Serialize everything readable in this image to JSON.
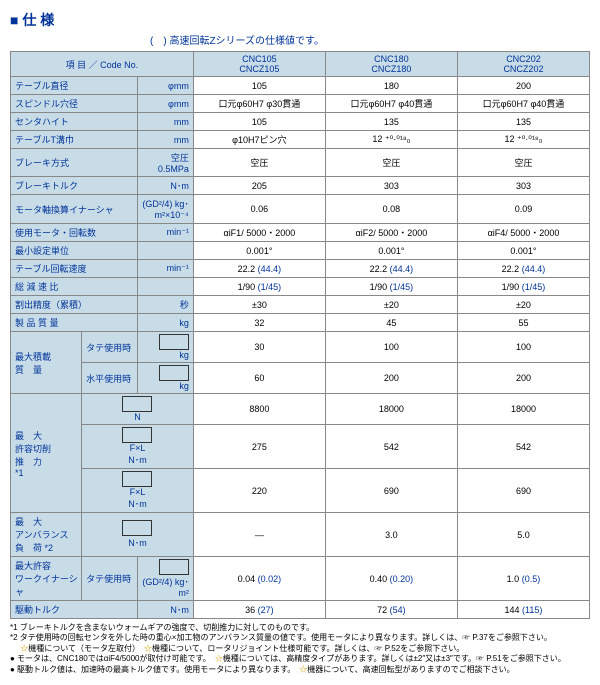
{
  "title": "仕 様",
  "subtitle": "(　) 高速回転Zシリーズの仕様値です。",
  "header": {
    "item": "項 目 ／ Code No.",
    "c1a": "CNC105",
    "c1b": "CNCZ105",
    "c2a": "CNC180",
    "c2b": "CNCZ180",
    "c3a": "CNC202",
    "c3b": "CNCZ202"
  },
  "rows": [
    {
      "l": "テーブル直径",
      "u": "φmm",
      "v": [
        "105",
        "180",
        "200"
      ]
    },
    {
      "l": "スピンドル穴径",
      "u": "φmm",
      "v": [
        "口元φ60H7 φ30貫通",
        "口元φ60H7 φ40貫通",
        "口元φ60H7 φ40貫通"
      ]
    },
    {
      "l": "センタハイト",
      "u": "mm",
      "v": [
        "105",
        "135",
        "135"
      ]
    },
    {
      "l": "テーブルT溝巾",
      "u": "mm",
      "v": [
        "φ10H7ピン穴",
        "12 ⁺⁰·⁰¹⁸₀",
        "12 ⁺⁰·⁰¹⁸₀"
      ]
    },
    {
      "l": "ブレーキ方式",
      "u": "空圧 0.5MPa",
      "v": [
        "空圧",
        "空圧",
        "空圧"
      ]
    },
    {
      "l": "ブレーキトルク",
      "u": "N･m",
      "v": [
        "205",
        "303",
        "303"
      ]
    },
    {
      "l": "モータ軸換算イナーシャ",
      "u": "(GD²/4) kg･m²×10⁻⁴",
      "v": [
        "0.06",
        "0.08",
        "0.09"
      ]
    },
    {
      "l": "使用モータ・回転数",
      "u": "min⁻¹",
      "v": [
        "αiF1/ 5000・2000",
        "αiF2/ 5000・2000",
        "αiF4/ 5000・2000"
      ]
    },
    {
      "l": "最小設定単位",
      "u": "",
      "v": [
        "0.001°",
        "0.001°",
        "0.001°"
      ]
    },
    {
      "l": "テーブル回転速度",
      "u": "min⁻¹",
      "v": [
        "22.2",
        "22.2",
        "22.2"
      ],
      "p": [
        "(44.4)",
        "(44.4)",
        "(44.4)"
      ]
    },
    {
      "l": "総 減 速 比",
      "u": "",
      "v": [
        "1/90",
        "1/90",
        "1/90"
      ],
      "p": [
        "(1/45)",
        "(1/45)",
        "(1/45)"
      ]
    },
    {
      "l": "割出精度（累積）",
      "u": "秒",
      "v": [
        "±30",
        "±20",
        "±20"
      ]
    },
    {
      "l": "製 品 質 量",
      "u": "kg",
      "v": [
        "32",
        "45",
        "55"
      ]
    }
  ],
  "load": {
    "label": "最大積載\n質　量",
    "r1": {
      "l": "タテ使用時",
      "u": "kg",
      "v": [
        "30",
        "100",
        "100"
      ]
    },
    "r2": {
      "l": "水平使用時",
      "u": "kg",
      "v": [
        "60",
        "200",
        "200"
      ]
    }
  },
  "cut": {
    "label": "最　大\n許容切削\n推　力",
    "tag": "*1",
    "r1": {
      "u": "N",
      "v": [
        "8800",
        "18000",
        "18000"
      ]
    },
    "r2": {
      "u": "F×L\nN･m",
      "v": [
        "275",
        "542",
        "542"
      ]
    },
    "r3": {
      "u": "F×L\nN･m",
      "v": [
        "220",
        "690",
        "690"
      ]
    }
  },
  "unbal": {
    "label": "最　大\nアンバランス\n負　荷",
    "tag": "*2",
    "u": "N･m",
    "v": [
      "—",
      "3.0",
      "5.0"
    ]
  },
  "workinertia": {
    "label": "最大許容\nワークイナーシャ",
    "sub": "タテ使用時",
    "u": "(GD²/4) kg･m²",
    "v": [
      "0.04",
      "0.40",
      "1.0"
    ],
    "p": [
      "(0.02)",
      "(0.20)",
      "(0.5)"
    ]
  },
  "drive": {
    "label": "駆動トルク",
    "u": "N･m",
    "v": [
      "36",
      "72",
      "144"
    ],
    "p": [
      "(27)",
      "(54)",
      "(115)"
    ]
  },
  "notes": [
    "*1 ブレーキトルクを含まないウォームギアの強度で、切削推力に対してのものです。",
    "*2 タテ使用時の回転センタを外した時の重心×加工物のアンバランス質量の値です。使用モータにより異なります。詳しくは、☞ P.37をご参照下さい。",
    "　 ☆機種について（モータ左取付）　☆機種について、ロータリジョイント仕様可能です。詳しくは、☞ P.52をご参照下さい。",
    "● モータは、CNC180ではαiF4/5000が取付け可能です。　☆機種については、高精度タイプがあります。詳しくは±2″又は±3″です。☞ P.51をご参照下さい。",
    "● 駆動トルク値は、加速時の最高トルク値です。使用モータにより異なります。　☆機器について、高速回転型がありますのでご相談下さい。"
  ]
}
